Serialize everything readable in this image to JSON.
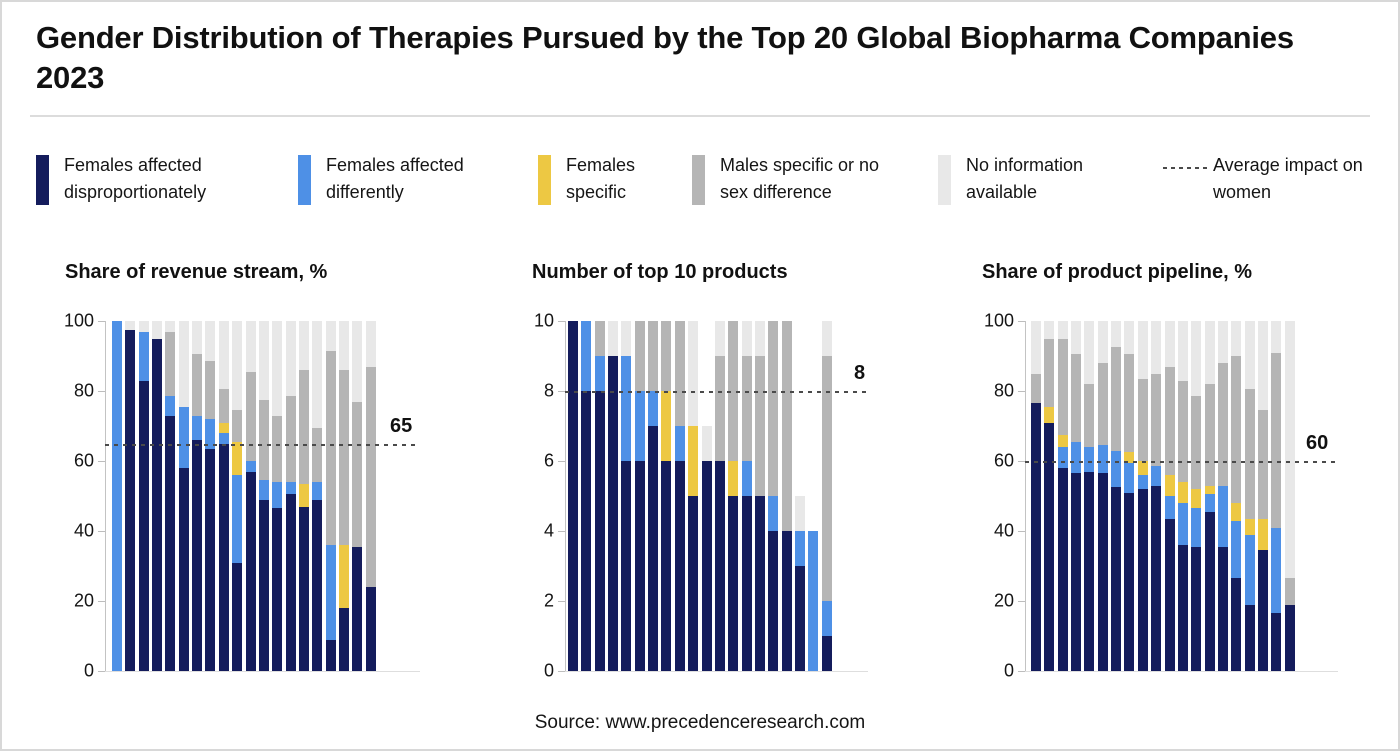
{
  "page": {
    "title": "Gender Distribution of Therapies Pursued by the Top 20 Global Biopharma Companies 2023",
    "source": "Source: www.precedenceresearch.com"
  },
  "colors": {
    "navy": "#141c5c",
    "blue": "#4e90e6",
    "yellow": "#edc843",
    "gray": "#b5b5b5",
    "lightgray": "#e8e8e8",
    "dash": "#4a4a4a"
  },
  "legend": {
    "position": "top",
    "items": [
      {
        "key": "navy",
        "label": "Females affected disproportionately"
      },
      {
        "key": "blue",
        "label": "Females affected differently"
      },
      {
        "key": "yellow",
        "label": "Females specific"
      },
      {
        "key": "gray",
        "label": "Males specific or no sex difference"
      },
      {
        "key": "lightgray",
        "label": "No information available"
      },
      {
        "key": "dash",
        "label": "Average impact on women"
      }
    ]
  },
  "chart_data": [
    {
      "type": "bar",
      "stacked": true,
      "title": "Share of revenue stream, %",
      "ylim": [
        0,
        100
      ],
      "yticks": [
        0,
        20,
        40,
        60,
        80,
        100
      ],
      "grid": false,
      "reference_line": {
        "value": 65,
        "label": "65",
        "meaning": "Average impact on women"
      },
      "series_keys": [
        "navy",
        "blue",
        "yellow",
        "gray",
        "lightgray"
      ],
      "series_labels": [
        "Females affected disproportionately",
        "Females affected differently",
        "Females specific",
        "Males specific or no sex difference",
        "No information available"
      ],
      "x_note": "20 unnamed companies",
      "bars": [
        [
          0,
          100,
          0,
          0,
          0
        ],
        [
          97.5,
          0,
          0,
          0,
          2.5
        ],
        [
          83,
          14,
          0,
          0,
          3
        ],
        [
          95,
          0,
          0,
          0,
          5
        ],
        [
          73,
          5.5,
          0,
          18.5,
          3
        ],
        [
          58,
          17.5,
          0,
          0,
          24.5
        ],
        [
          66,
          7,
          0,
          17.5,
          9.5
        ],
        [
          63.5,
          8.5,
          0,
          16.5,
          11.5
        ],
        [
          65,
          3,
          3,
          9.5,
          19.5
        ],
        [
          31,
          25,
          9.5,
          9,
          25.5
        ],
        [
          57,
          3,
          0,
          25.5,
          14.5
        ],
        [
          49,
          5.5,
          0,
          23,
          22.5
        ],
        [
          46.5,
          7.5,
          0,
          19,
          27
        ],
        [
          50.5,
          3.5,
          0,
          24.5,
          21.5
        ],
        [
          47,
          0,
          6.5,
          32.5,
          14
        ],
        [
          49,
          5,
          0,
          15.5,
          30.5
        ],
        [
          9,
          27,
          0,
          55.5,
          8.5
        ],
        [
          18,
          0,
          18,
          50,
          14
        ],
        [
          35.5,
          0,
          0,
          41.5,
          23
        ],
        [
          24,
          0,
          0,
          63,
          13
        ]
      ]
    },
    {
      "type": "bar",
      "stacked": true,
      "title": "Number of top 10 products",
      "ylim": [
        0,
        10
      ],
      "yticks": [
        0,
        2,
        4,
        6,
        8,
        10
      ],
      "grid": false,
      "reference_line": {
        "value": 8,
        "label": "8",
        "meaning": "Average impact on women"
      },
      "series_keys": [
        "navy",
        "blue",
        "yellow",
        "gray",
        "lightgray"
      ],
      "series_labels": [
        "Females affected disproportionately",
        "Females affected differently",
        "Females specific",
        "Males specific or no sex difference",
        "No information available"
      ],
      "x_note": "20 unnamed companies",
      "bars": [
        [
          10,
          0,
          0,
          0,
          0
        ],
        [
          8,
          2,
          0,
          0,
          0
        ],
        [
          8,
          1,
          0,
          1,
          0
        ],
        [
          9,
          0,
          0,
          0,
          1
        ],
        [
          6,
          3,
          0,
          0,
          1
        ],
        [
          6,
          2,
          0,
          2,
          0
        ],
        [
          7,
          1,
          0,
          2,
          0
        ],
        [
          6,
          0,
          2,
          2,
          0
        ],
        [
          6,
          1,
          0,
          3,
          0
        ],
        [
          5,
          0,
          2,
          0,
          3
        ],
        [
          6,
          0,
          0,
          0,
          1
        ],
        [
          6,
          0,
          0,
          3,
          1
        ],
        [
          5,
          0,
          1,
          4,
          0
        ],
        [
          5,
          1,
          0,
          3,
          1
        ],
        [
          5,
          0,
          0,
          4,
          1
        ],
        [
          4,
          1,
          0,
          5,
          0
        ],
        [
          4,
          0,
          0,
          6,
          0
        ],
        [
          3,
          1,
          0,
          0,
          1
        ],
        [
          0,
          4,
          0,
          0,
          0
        ],
        [
          1,
          1,
          0,
          7,
          1
        ]
      ]
    },
    {
      "type": "bar",
      "stacked": true,
      "title": "Share of product pipeline, %",
      "ylim": [
        0,
        100
      ],
      "yticks": [
        0,
        20,
        40,
        60,
        80,
        100
      ],
      "grid": false,
      "reference_line": {
        "value": 60,
        "label": "60",
        "meaning": "Average impact on women"
      },
      "series_keys": [
        "navy",
        "blue",
        "yellow",
        "gray",
        "lightgray"
      ],
      "series_labels": [
        "Females affected disproportionately",
        "Females affected differently",
        "Females specific",
        "Males specific or no sex difference",
        "No information available"
      ],
      "x_note": "20 unnamed companies",
      "bars": [
        [
          76.5,
          0,
          0,
          8.5,
          15
        ],
        [
          71,
          0,
          4.5,
          19.5,
          5
        ],
        [
          58,
          6,
          3.5,
          27.5,
          5
        ],
        [
          56.5,
          9,
          0,
          25,
          9.5
        ],
        [
          57,
          7,
          0,
          18,
          18
        ],
        [
          56.5,
          8,
          0,
          23.5,
          12
        ],
        [
          52.5,
          10.5,
          0,
          29.5,
          7.5
        ],
        [
          51,
          8.5,
          3,
          28,
          9.5
        ],
        [
          52,
          4,
          4,
          23.5,
          16.5
        ],
        [
          53,
          5.5,
          0,
          26.5,
          15
        ],
        [
          43.5,
          6.5,
          6,
          31,
          13
        ],
        [
          36,
          12,
          6,
          29,
          17
        ],
        [
          35.5,
          11,
          5.5,
          26.5,
          21.5
        ],
        [
          45.5,
          5,
          2.5,
          29,
          18
        ],
        [
          35.5,
          17.5,
          0,
          35,
          12
        ],
        [
          26.5,
          16.5,
          5,
          42,
          10
        ],
        [
          19,
          20,
          4.5,
          37,
          19.5
        ],
        [
          34.5,
          0,
          9,
          31,
          25.5
        ],
        [
          16.5,
          24.5,
          0,
          50,
          9
        ],
        [
          19,
          0,
          0,
          7.5,
          73.5
        ]
      ]
    }
  ]
}
